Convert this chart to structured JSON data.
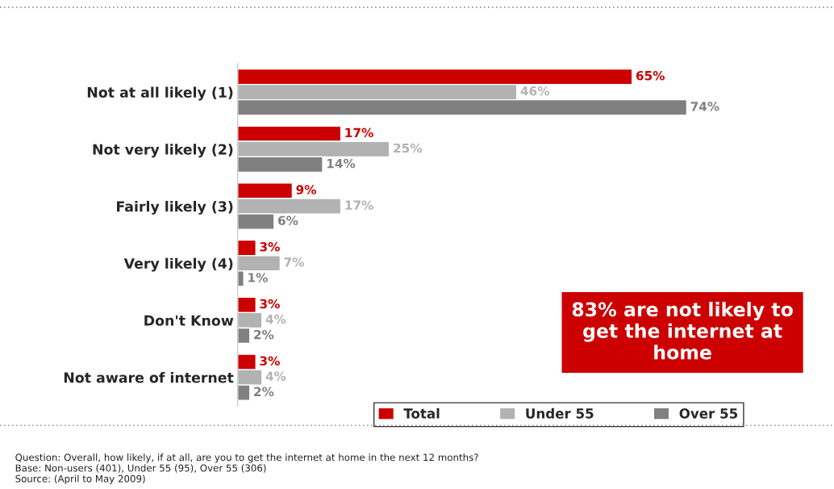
{
  "chart_data": {
    "type": "bar",
    "orientation": "horizontal",
    "categories": [
      "Not at all likely (1)",
      "Not very likely (2)",
      "Fairly likely (3)",
      "Very likely (4)",
      "Don't Know",
      "Not aware of internet"
    ],
    "series": [
      {
        "name": "Total",
        "color": "#cc0000",
        "values": [
          65,
          17,
          9,
          3,
          3,
          3
        ],
        "value_labels": [
          "65%",
          "17%",
          "9%",
          "3%",
          "3%",
          "3%"
        ]
      },
      {
        "name": "Under 55",
        "color": "#b2b2b2",
        "values": [
          46,
          25,
          17,
          7,
          4,
          4
        ],
        "value_labels": [
          "46%",
          "25%",
          "17%",
          "7%",
          "4%",
          "4%"
        ]
      },
      {
        "name": "Over 55",
        "color": "#808080",
        "values": [
          74,
          14,
          6,
          1,
          2,
          2
        ],
        "value_labels": [
          "74%",
          "14%",
          "6%",
          "1%",
          "2%",
          "2%"
        ]
      }
    ],
    "legend": "bottom",
    "grid": false,
    "annotations": [
      "83% are not likely to get the internet at home",
      "Question: Overall, how likely, if at all, are you to get the internet at home in the next 12 months?\nBase: Non-users (401), Under 55 (95), Over 55 (306)\nSource: (April to May 2009)"
    ]
  }
}
